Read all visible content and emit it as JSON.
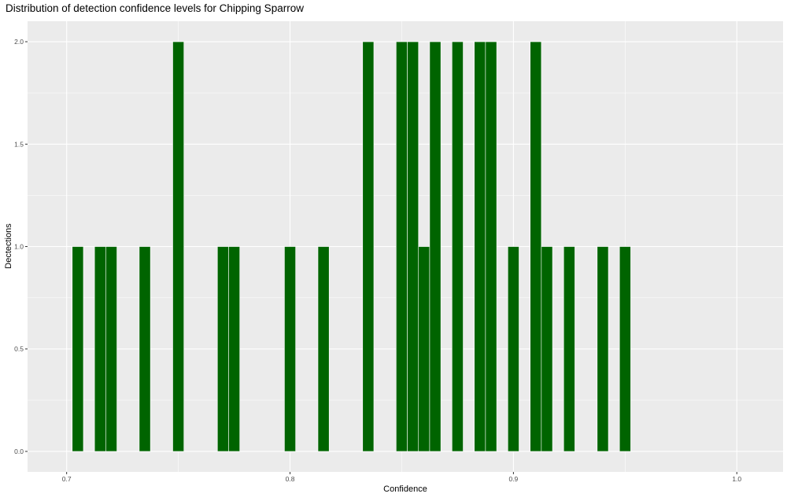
{
  "chart_data": {
    "type": "bar",
    "title": "Distribution of detection confidence levels for Chipping Sparrow",
    "xlabel": "Confidence",
    "ylabel": "Dectections",
    "xlim": [
      0.6825,
      1.0207
    ],
    "ylim": [
      -0.1,
      2.1
    ],
    "x_ticks": [
      0.7,
      0.8,
      0.9,
      1.0
    ],
    "x_tick_labels": [
      "0.7",
      "0.8",
      "0.9",
      "1.0"
    ],
    "y_ticks": [
      0,
      0.5,
      1,
      1.5,
      2
    ],
    "y_tick_labels": [
      "0.0",
      "0.5",
      "1.0",
      "1.5",
      "2.0"
    ],
    "bin_width": 0.005,
    "grid": true,
    "bar_color": "#006400",
    "bar_outline_color": "#ffffff",
    "panel_background": "#EBEBEB",
    "grid_color": "#ffffff",
    "bars": [
      {
        "x": 0.705,
        "count": 1
      },
      {
        "x": 0.715,
        "count": 1
      },
      {
        "x": 0.72,
        "count": 1
      },
      {
        "x": 0.735,
        "count": 1
      },
      {
        "x": 0.75,
        "count": 2
      },
      {
        "x": 0.77,
        "count": 1
      },
      {
        "x": 0.775,
        "count": 1
      },
      {
        "x": 0.8,
        "count": 1
      },
      {
        "x": 0.815,
        "count": 1
      },
      {
        "x": 0.835,
        "count": 2
      },
      {
        "x": 0.85,
        "count": 2
      },
      {
        "x": 0.855,
        "count": 2
      },
      {
        "x": 0.86,
        "count": 1
      },
      {
        "x": 0.865,
        "count": 2
      },
      {
        "x": 0.875,
        "count": 2
      },
      {
        "x": 0.885,
        "count": 2
      },
      {
        "x": 0.89,
        "count": 2
      },
      {
        "x": 0.9,
        "count": 1
      },
      {
        "x": 0.91,
        "count": 2
      },
      {
        "x": 0.915,
        "count": 1
      },
      {
        "x": 0.925,
        "count": 1
      },
      {
        "x": 0.94,
        "count": 1
      },
      {
        "x": 0.95,
        "count": 1
      }
    ]
  }
}
